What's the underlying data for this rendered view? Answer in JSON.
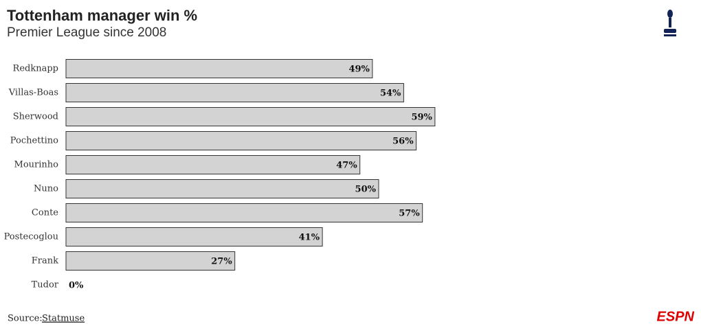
{
  "chart_data": {
    "type": "bar",
    "orientation": "horizontal",
    "title": "Tottenham manager win %",
    "subtitle": "Premier League since 2008",
    "categories": [
      "Redknapp",
      "Villas-Boas",
      "Sherwood",
      "Pochettino",
      "Mourinho",
      "Nuno",
      "Conte",
      "Postecoglou",
      "Frank",
      "Tudor"
    ],
    "values": [
      49,
      54,
      59,
      56,
      47,
      50,
      57,
      41,
      27,
      0
    ],
    "value_labels": [
      "49%",
      "54%",
      "59%",
      "56%",
      "47%",
      "50%",
      "57%",
      "41%",
      "27%",
      "0%"
    ],
    "color": "#d3d3d3",
    "source_label": "Source:",
    "source": "Statmuse",
    "logo": "ESPN"
  }
}
